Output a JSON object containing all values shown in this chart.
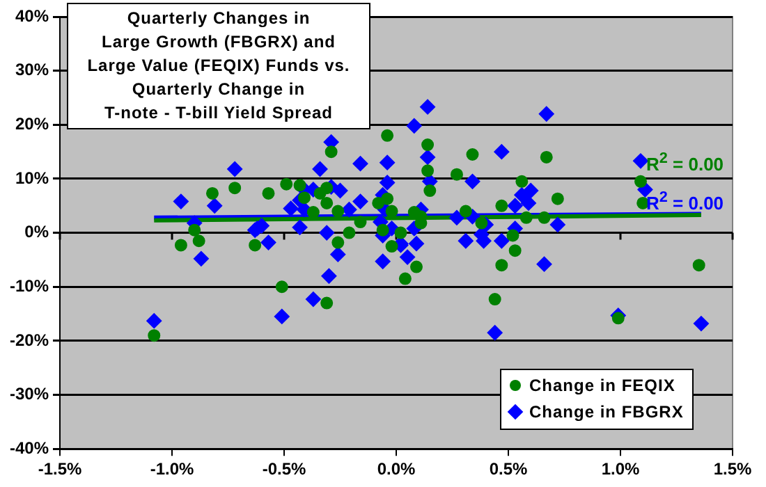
{
  "chart_data": {
    "type": "scatter",
    "title": "Quarterly Changes in\nLarge Growth (FBGRX) and\nLarge Value (FEQIX) Funds vs.\nQuarterly Change in\nT-note - T-bill Yield Spread",
    "xlim": [
      -1.5,
      1.5
    ],
    "xticks": [
      {
        "value": -1.5,
        "label": "-1.5%"
      },
      {
        "value": -1.0,
        "label": "-1.0%"
      },
      {
        "value": -0.5,
        "label": "-0.5%"
      },
      {
        "value": 0,
        "label": "0.0%"
      },
      {
        "value": 0.5,
        "label": "0.5%"
      },
      {
        "value": 1.0,
        "label": "1.0%"
      },
      {
        "value": 1.5,
        "label": "1.5%"
      }
    ],
    "ylim": [
      -40,
      40
    ],
    "yticks": [
      {
        "value": -40,
        "label": "-40%"
      },
      {
        "value": -30,
        "label": "-30%"
      },
      {
        "value": -20,
        "label": "-20%"
      },
      {
        "value": -10,
        "label": "-10%"
      },
      {
        "value": 0,
        "label": "0%"
      },
      {
        "value": 10,
        "label": "10%"
      },
      {
        "value": 20,
        "label": "20%"
      },
      {
        "value": 30,
        "label": "30%"
      },
      {
        "value": 40,
        "label": "40%"
      }
    ],
    "grid": "y",
    "legend": "bottom right",
    "annotations": [
      "R$^{2}$ = 0.00",
      "R$^{2}$ = 0.00"
    ],
    "series": [
      {
        "name": "Change in FEQIX",
        "color": "#008000",
        "marker": "circle",
        "x": [
          -1.08,
          -0.96,
          -0.9,
          -0.88,
          -0.63,
          -0.51,
          -0.31,
          -0.26,
          -0.21,
          -0.02,
          -0.82,
          -0.72,
          -0.57,
          -0.49,
          -0.43,
          -0.41,
          -0.37,
          -0.34,
          -0.31,
          -0.29,
          -0.31,
          -0.26,
          -0.08,
          -0.04,
          -0.04,
          -0.02,
          -0.16,
          -0.06,
          0.02,
          0.11,
          0.11,
          0.08,
          0.14,
          0.14,
          0.15,
          0.34,
          0.27,
          0.31,
          0.38,
          0.47,
          0.56,
          0.58,
          0.67,
          0.66,
          0.72,
          1.09,
          1.1,
          0.52,
          0.09,
          0.04,
          0.47,
          0.53,
          0.44,
          0.99,
          1.35
        ],
        "values": [
          -19,
          -2.3,
          0.5,
          -1.5,
          -2.3,
          -10,
          -13,
          -1.8,
          0,
          -2.5,
          7.3,
          8.3,
          7.3,
          9,
          8.8,
          6.5,
          3.8,
          7.3,
          8.3,
          15,
          5.5,
          4,
          5.5,
          18,
          6.3,
          4,
          2,
          0.5,
          0,
          1.8,
          3,
          3.8,
          16.3,
          11.5,
          7.8,
          14.5,
          10.8,
          4,
          1.8,
          5,
          9.5,
          2.8,
          14,
          2.8,
          6.3,
          9.5,
          5.5,
          -0.5,
          -6.3,
          -8.5,
          -6,
          -3.3,
          -12.3,
          -15.8,
          -6
        ]
      },
      {
        "name": "Change in FBGRX",
        "color": "#0000ff",
        "marker": "diamond",
        "x": [
          -1.08,
          -0.87,
          -0.62,
          -0.57,
          -0.51,
          -0.43,
          -0.37,
          -0.31,
          -0.3,
          -0.26,
          -0.06,
          -0.06,
          0.02,
          -0.96,
          -0.9,
          -0.81,
          -0.72,
          -0.63,
          -0.6,
          -0.47,
          -0.43,
          -0.41,
          -0.41,
          -0.37,
          -0.34,
          -0.29,
          -0.29,
          -0.25,
          -0.21,
          -0.16,
          -0.16,
          -0.07,
          -0.06,
          -0.04,
          -0.04,
          -0.05,
          -0.02,
          0.14,
          0.08,
          0.14,
          0.15,
          0.11,
          0.08,
          0.34,
          0.47,
          0.67,
          0.56,
          0.59,
          0.6,
          0.53,
          0.72,
          0.4,
          0.38,
          0.53,
          0.27,
          1.09,
          1.11,
          0.34,
          0.02,
          0.09,
          0.05,
          0.31,
          0.39,
          0.47,
          0.66,
          0.44,
          0.99,
          1.36
        ],
        "values": [
          -16.3,
          -4.8,
          0.8,
          -1.8,
          -15.5,
          1,
          -12.3,
          0,
          -8,
          -4,
          -0.5,
          -5.3,
          -2,
          5.8,
          1.8,
          5,
          11.8,
          0.5,
          1.3,
          4.5,
          6,
          8,
          4.3,
          8,
          11.8,
          16.8,
          8.5,
          7.8,
          4.3,
          12.8,
          5.8,
          2,
          7,
          13,
          9.3,
          4.3,
          0.8,
          23.3,
          19.8,
          14,
          9.5,
          4.3,
          0.8,
          9.5,
          15,
          22,
          7,
          5.5,
          7.8,
          5,
          1.5,
          1.5,
          -0.3,
          0.8,
          2.8,
          13.3,
          8,
          3,
          -2.3,
          -2,
          -4.5,
          -1.5,
          -1.5,
          -1.5,
          -5.8,
          -18.5,
          -15.3,
          -16.8
        ]
      },
      {
        "type": "line",
        "color": "#008000",
        "x": [
          -1.08,
          1.36
        ],
        "values": [
          2.3,
          3.3
        ]
      },
      {
        "type": "line",
        "color": "#0000ff",
        "x": [
          -1.08,
          1.36
        ],
        "values": [
          2.8,
          3.5
        ]
      }
    ]
  }
}
